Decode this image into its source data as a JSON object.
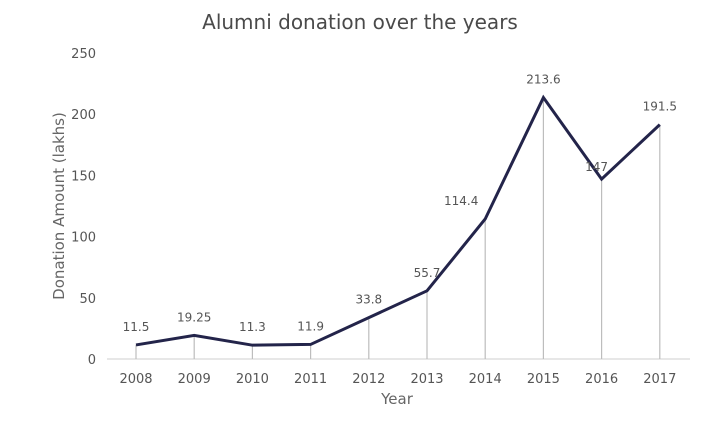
{
  "chart_data": {
    "type": "line",
    "title": "Alumni donation over the years",
    "xlabel": "Year",
    "ylabel": "Donation Amount (lakhs)",
    "categories": [
      "2008",
      "2009",
      "2010",
      "2011",
      "2012",
      "2013",
      "2014",
      "2015",
      "2016",
      "2017"
    ],
    "values": [
      11.5,
      19.25,
      11.3,
      11.9,
      33.8,
      55.7,
      114.4,
      213.6,
      147,
      191.5
    ],
    "data_labels": [
      "11.5",
      "19.25",
      "11.3",
      "11.9",
      "33.8",
      "55.7",
      "114.4",
      "213.6",
      "147",
      "191.5"
    ],
    "ylim": [
      0,
      250
    ],
    "yticks": [
      "0",
      "50",
      "100",
      "150",
      "200",
      "250"
    ],
    "grid": false,
    "drop_lines": true,
    "colors": {
      "line": "#23244a",
      "drop_line": "#bdbdbd",
      "axis": "#cfcfcf",
      "text": "#555555"
    }
  }
}
